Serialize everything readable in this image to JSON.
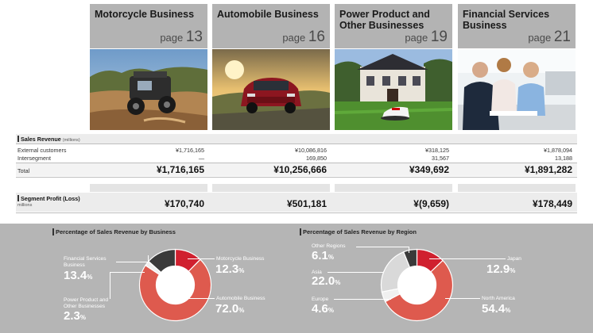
{
  "segments": [
    {
      "title": "Motorcycle Business",
      "page_prefix": "page",
      "page_num": "13",
      "photo": "side-by-side-atv-photo"
    },
    {
      "title": "Automobile Business",
      "page_prefix": "page",
      "page_num": "16",
      "photo": "suv-car-photo"
    },
    {
      "title": "Power Product and Other Businesses",
      "page_prefix": "page",
      "page_num": "19",
      "photo": "robotic-lawnmower-photo"
    },
    {
      "title": "Financial Services Business",
      "page_prefix": "page",
      "page_num": "21",
      "photo": "car-dealership-photo"
    }
  ],
  "table": {
    "sales_revenue_label": "Sales Revenue",
    "sales_revenue_unit": "(millions)",
    "external_label": "External customers",
    "intersegment_label": "Intersegment",
    "total_label": "Total",
    "profit_label": "Segment Profit (Loss)",
    "profit_unit": "millions",
    "external": [
      "¥1,716,165",
      "¥10,086,816",
      "¥318,125",
      "¥1,878,094"
    ],
    "intersegment": [
      "—",
      "169,850",
      "31,567",
      "13,188"
    ],
    "total": [
      "¥1,716,165",
      "¥10,256,666",
      "¥349,692",
      "¥1,891,282"
    ],
    "profit": [
      "¥170,740",
      "¥501,181",
      "¥(9,659)",
      "¥178,449"
    ]
  },
  "chart_data": [
    {
      "type": "pie",
      "title": "Percentage of Sales Revenue by Business",
      "unit": "%",
      "slices": [
        {
          "name": "Motorcycle Business",
          "value": 12.3,
          "value_text": "12.3",
          "color": "#d0202f"
        },
        {
          "name": "Automobile Business",
          "value": 72.0,
          "value_text": "72.0",
          "color": "#de5a4e"
        },
        {
          "name": "Power Product and Other Businesses",
          "value": 2.3,
          "value_text": "2.3",
          "color": "#f0f0f0"
        },
        {
          "name": "Financial Services Business",
          "value": 13.4,
          "value_text": "13.4",
          "color": "#3a3a3a"
        }
      ]
    },
    {
      "type": "pie",
      "title": "Percentage of Sales Revenue by Region",
      "unit": "%",
      "slices": [
        {
          "name": "Japan",
          "value": 12.9,
          "value_text": "12.9",
          "color": "#d0202f"
        },
        {
          "name": "North America",
          "value": 54.4,
          "value_text": "54.4",
          "color": "#de5a4e"
        },
        {
          "name": "Europe",
          "value": 4.6,
          "value_text": "4.6",
          "color": "#f0f0f0"
        },
        {
          "name": "Asia",
          "value": 22.0,
          "value_text": "22.0",
          "color": "#d9d9d9"
        },
        {
          "name": "Other Regions",
          "value": 6.1,
          "value_text": "6.1",
          "color": "#3a3a3a"
        }
      ]
    }
  ]
}
